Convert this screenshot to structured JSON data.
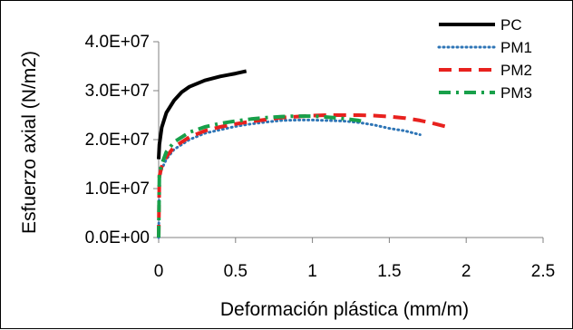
{
  "chart_data": {
    "type": "line",
    "title": "",
    "xlabel": "Deformación plástica (mm/m)",
    "ylabel": "Esfuerzo axial (N/m2)",
    "xlim": [
      0,
      2.5
    ],
    "ylim": [
      0,
      40000000
    ],
    "xticks": [
      0,
      0.5,
      1,
      1.5,
      2,
      2.5
    ],
    "xtick_labels": [
      "0",
      "0.5",
      "1",
      "1.5",
      "2",
      "2.5"
    ],
    "yticks": [
      0,
      10000000,
      20000000,
      30000000,
      40000000
    ],
    "ytick_labels": [
      "0.0E+00",
      "1.0E+07",
      "2.0E+07",
      "3.0E+07",
      "4.0E+07"
    ],
    "grid": false,
    "legend_position": "top-right",
    "series": [
      {
        "name": "PC",
        "color": "#000000",
        "style": "solid",
        "x": [
          0,
          0.005,
          0.02,
          0.05,
          0.1,
          0.15,
          0.2,
          0.3,
          0.4,
          0.5,
          0.57
        ],
        "y": [
          16000000,
          19000000,
          22500000,
          25500000,
          28000000,
          29700000,
          30800000,
          32100000,
          32900000,
          33500000,
          34000000
        ]
      },
      {
        "name": "PM1",
        "color": "#2e75b6",
        "style": "dotted",
        "x": [
          0,
          0.005,
          0.02,
          0.05,
          0.1,
          0.2,
          0.3,
          0.4,
          0.5,
          0.6,
          0.7,
          0.8,
          0.9,
          1.0,
          1.1,
          1.2,
          1.3,
          1.4,
          1.5,
          1.6,
          1.7
        ],
        "y": [
          0,
          12000000,
          14000000,
          16000000,
          18000000,
          20000000,
          21300000,
          22000000,
          22700000,
          23200000,
          23600000,
          23900000,
          24000000,
          24000000,
          23900000,
          23800000,
          23500000,
          23000000,
          22300000,
          21800000,
          21000000
        ]
      },
      {
        "name": "PM2",
        "color": "#e8211e",
        "style": "dashed",
        "x": [
          0,
          0.005,
          0.02,
          0.05,
          0.1,
          0.2,
          0.3,
          0.4,
          0.5,
          0.6,
          0.7,
          0.8,
          0.9,
          1.0,
          1.1,
          1.2,
          1.3,
          1.4,
          1.5,
          1.6,
          1.7,
          1.8,
          1.9
        ],
        "y": [
          0,
          12500000,
          14500000,
          16500000,
          18500000,
          20500000,
          21800000,
          22600000,
          23200000,
          23700000,
          24100000,
          24500000,
          24700000,
          24900000,
          25000000,
          25000000,
          25000000,
          24900000,
          24700000,
          24400000,
          23900000,
          23200000,
          22400000
        ]
      },
      {
        "name": "PM3",
        "color": "#18a04a",
        "style": "dashdot",
        "x": [
          0,
          0.005,
          0.02,
          0.05,
          0.1,
          0.2,
          0.3,
          0.4,
          0.5,
          0.6,
          0.7,
          0.8,
          0.9,
          1.0,
          1.1,
          1.2,
          1.3,
          1.35
        ],
        "y": [
          0,
          13000000,
          15000000,
          17500000,
          19500000,
          21500000,
          22600000,
          23300000,
          23800000,
          24200000,
          24500000,
          24700000,
          24800000,
          24800000,
          24600000,
          24300000,
          23900000,
          23600000
        ]
      }
    ]
  }
}
